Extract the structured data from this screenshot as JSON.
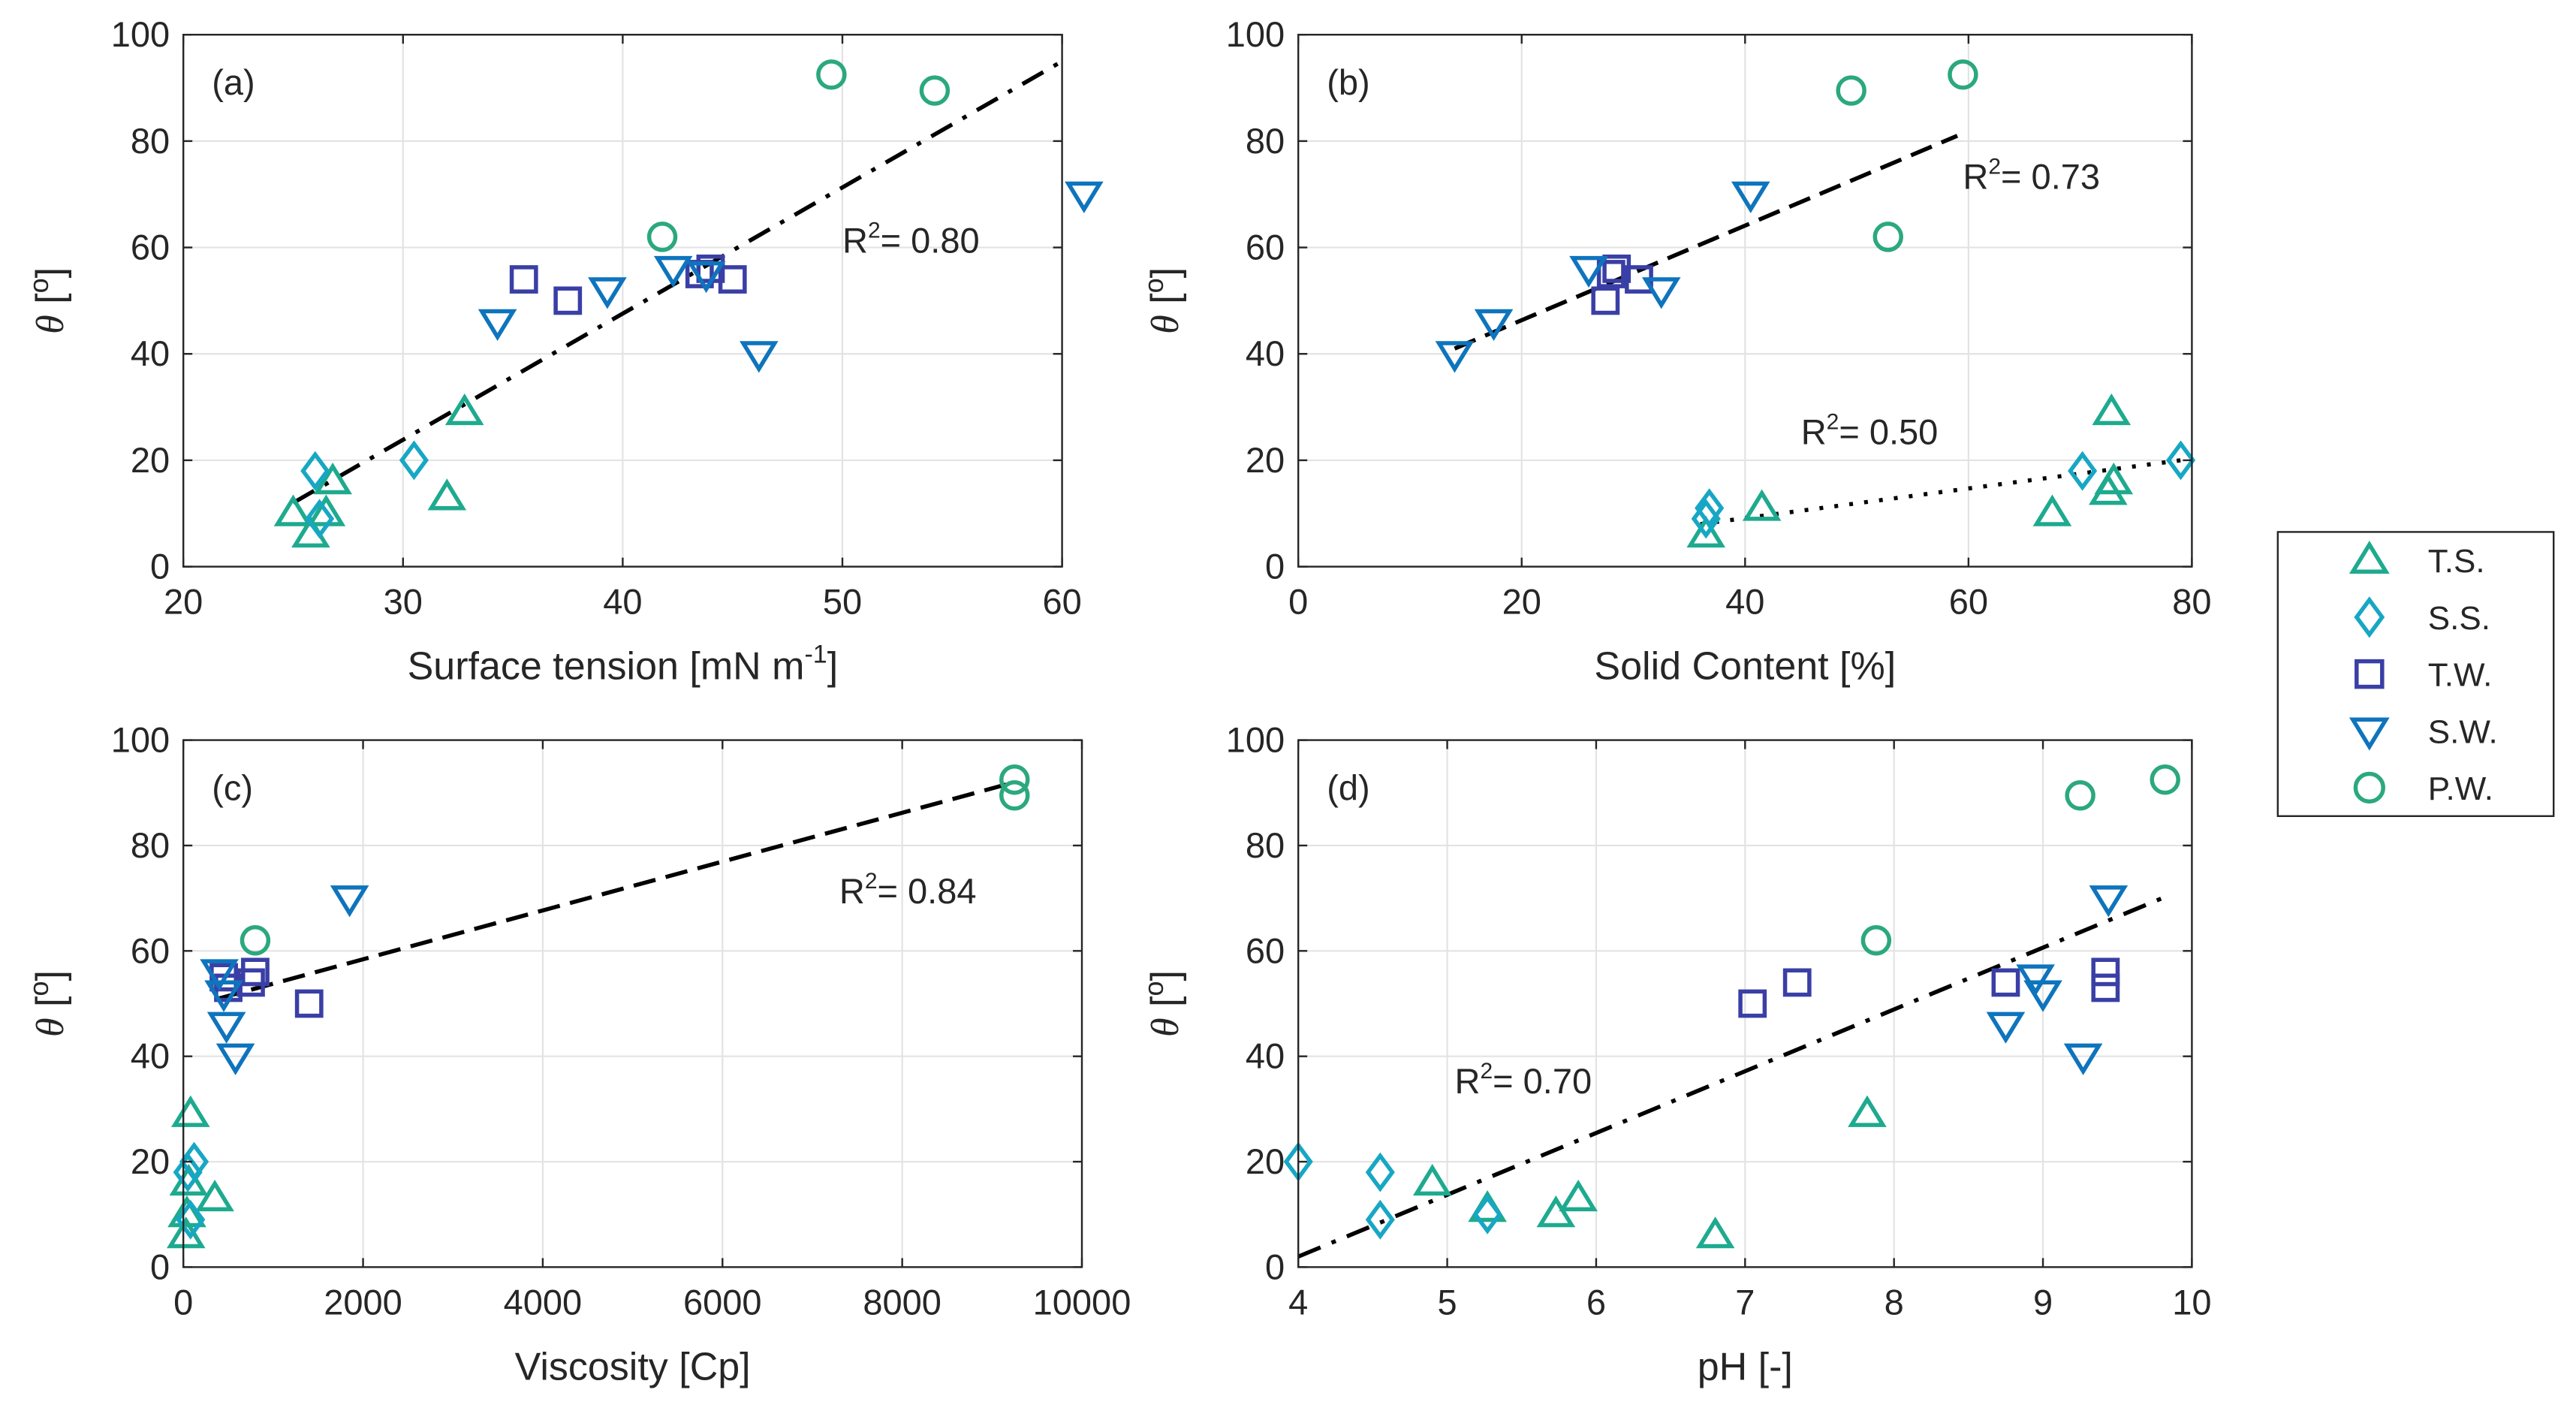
{
  "legend": {
    "items": [
      {
        "key": "TS",
        "label": "T.S."
      },
      {
        "key": "SS",
        "label": "S.S."
      },
      {
        "key": "TW",
        "label": "T.W."
      },
      {
        "key": "SW",
        "label": "S.W."
      },
      {
        "key": "PW",
        "label": "P.W."
      }
    ]
  },
  "styles": {
    "TS": {
      "color": "#1eaa8e",
      "marker": "triangle-up"
    },
    "SS": {
      "color": "#17a7c4",
      "marker": "diamond"
    },
    "TW": {
      "color": "#3a3fa6",
      "marker": "square"
    },
    "SW": {
      "color": "#0e74bd",
      "marker": "triangle-down"
    },
    "PW": {
      "color": "#2ba87e",
      "marker": "circle"
    }
  },
  "chart_data": [
    {
      "id": "a",
      "type": "scatter",
      "panel_label": "(a)",
      "xlabel": "Surface tension [mN m",
      "xlabel_sup": "-1",
      "xlabel_tail": "]",
      "ylabel": "θ",
      "ylabel_tail": " [",
      "ylabel_sup": "o",
      "ylabel_end": "]",
      "xlim": [
        20,
        60
      ],
      "ylim": [
        0,
        100
      ],
      "xticks": [
        20,
        30,
        40,
        50,
        60
      ],
      "xtick_labels": [
        "20",
        "30",
        "40",
        "50",
        "60"
      ],
      "yticks": [
        0,
        20,
        40,
        60,
        80,
        100
      ],
      "ytick_labels": [
        "0",
        "20",
        "40",
        "60",
        "80",
        "100"
      ],
      "series": [
        {
          "name": "TS",
          "points": [
            [
              25,
              10
            ],
            [
              25.8,
              6
            ],
            [
              26.5,
              10
            ],
            [
              26.8,
              16
            ],
            [
              32,
              13
            ],
            [
              32.8,
              29
            ]
          ]
        },
        {
          "name": "SS",
          "points": [
            [
              26,
              18
            ],
            [
              26.2,
              9
            ],
            [
              30.5,
              20
            ]
          ]
        },
        {
          "name": "TW",
          "points": [
            [
              35.5,
              54
            ],
            [
              37.5,
              50
            ],
            [
              43.5,
              55
            ],
            [
              44,
              56
            ],
            [
              45,
              54
            ]
          ]
        },
        {
          "name": "SW",
          "points": [
            [
              34.3,
              46
            ],
            [
              39.3,
              52
            ],
            [
              42.3,
              56
            ],
            [
              43.8,
              55
            ],
            [
              46.2,
              40
            ],
            [
              61,
              70
            ]
          ]
        },
        {
          "name": "PW",
          "points": [
            [
              41.8,
              62
            ],
            [
              49.5,
              92.5
            ],
            [
              54.2,
              89.5
            ]
          ]
        }
      ],
      "fit": {
        "dash": "dashdot",
        "from": [
          25,
          12
        ],
        "to": [
          60,
          95
        ]
      },
      "annotation": {
        "pre": "R",
        "sup": "2",
        "post": "= 0.80",
        "x": 50,
        "y": 59
      }
    },
    {
      "id": "b",
      "type": "scatter",
      "panel_label": "(b)",
      "xlabel": "Solid Content [%]",
      "xlabel_sup": "",
      "xlabel_tail": "",
      "ylabel": "θ",
      "ylabel_tail": " [",
      "ylabel_sup": "o",
      "ylabel_end": "]",
      "xlim": [
        0,
        80
      ],
      "ylim": [
        0,
        100
      ],
      "xticks": [
        0,
        20,
        40,
        60,
        80
      ],
      "xtick_labels": [
        "0",
        "20",
        "40",
        "60",
        "80"
      ],
      "yticks": [
        0,
        20,
        40,
        60,
        80,
        100
      ],
      "ytick_labels": [
        "0",
        "20",
        "40",
        "60",
        "80",
        "100"
      ],
      "series": [
        {
          "name": "TS",
          "points": [
            [
              36.5,
              6
            ],
            [
              41.5,
              11
            ],
            [
              67.5,
              10
            ],
            [
              72.5,
              14
            ],
            [
              73,
              16
            ],
            [
              72.8,
              29
            ]
          ]
        },
        {
          "name": "SS",
          "points": [
            [
              36.5,
              9
            ],
            [
              36.8,
              11
            ],
            [
              70.2,
              18
            ],
            [
              79,
              20
            ]
          ]
        },
        {
          "name": "TW",
          "points": [
            [
              27.5,
              50
            ],
            [
              28,
              55
            ],
            [
              28.5,
              56
            ],
            [
              30.5,
              54
            ]
          ]
        },
        {
          "name": "SW",
          "points": [
            [
              14,
              40
            ],
            [
              17.5,
              46
            ],
            [
              26,
              56
            ],
            [
              32.5,
              52
            ],
            [
              40.5,
              70
            ]
          ]
        },
        {
          "name": "PW",
          "points": [
            [
              49.5,
              89.5
            ],
            [
              52.8,
              62
            ],
            [
              59.5,
              92.5
            ]
          ]
        }
      ],
      "fit": [
        {
          "dash": "dashed",
          "from": [
            14,
            41
          ],
          "to": [
            59,
            81
          ]
        },
        {
          "dash": "dotted",
          "from": [
            36,
            8
          ],
          "to": [
            79,
            20
          ]
        }
      ],
      "annotation": [
        {
          "pre": "R",
          "sup": "2",
          "post": "= 0.73",
          "x": 59.5,
          "y": 71
        },
        {
          "pre": "R",
          "sup": "2",
          "post": "= 0.50",
          "x": 45,
          "y": 23
        }
      ]
    },
    {
      "id": "c",
      "type": "scatter",
      "panel_label": "(c)",
      "xlabel": "Viscosity [Cp]",
      "xlabel_sup": "",
      "xlabel_tail": "",
      "ylabel": "θ",
      "ylabel_tail": " [",
      "ylabel_sup": "o",
      "ylabel_end": "]",
      "xlim": [
        0,
        10000
      ],
      "ylim": [
        0,
        100
      ],
      "xticks": [
        0,
        2000,
        4000,
        6000,
        8000,
        10000
      ],
      "xtick_labels": [
        "0",
        "2000",
        "4000",
        "6000",
        "8000",
        "10000"
      ],
      "yticks": [
        0,
        20,
        40,
        60,
        80,
        100
      ],
      "ytick_labels": [
        "0",
        "20",
        "40",
        "60",
        "80",
        "100"
      ],
      "series": [
        {
          "name": "TS",
          "points": [
            [
              30,
              6
            ],
            [
              40,
              10
            ],
            [
              60,
              16
            ],
            [
              80,
              29
            ],
            [
              350,
              13
            ]
          ]
        },
        {
          "name": "SS",
          "points": [
            [
              50,
              18
            ],
            [
              80,
              9
            ],
            [
              120,
              20
            ]
          ]
        },
        {
          "name": "TW",
          "points": [
            [
              450,
              55
            ],
            [
              500,
              53
            ],
            [
              750,
              54
            ],
            [
              800,
              56
            ],
            [
              1400,
              50
            ]
          ]
        },
        {
          "name": "SW",
          "points": [
            [
              400,
              56
            ],
            [
              450,
              52
            ],
            [
              480,
              46
            ],
            [
              580,
              40
            ],
            [
              1850,
              70
            ]
          ]
        },
        {
          "name": "PW",
          "points": [
            [
              800,
              62
            ],
            [
              9250,
              89.5
            ],
            [
              9250,
              92.5
            ]
          ]
        }
      ],
      "fit": {
        "dash": "dashed",
        "from": [
          400,
          51
        ],
        "to": [
          9250,
          92
        ]
      },
      "annotation": {
        "pre": "R",
        "sup": "2",
        "post": "= 0.84",
        "x": 7300,
        "y": 69
      }
    },
    {
      "id": "d",
      "type": "scatter",
      "panel_label": "(d)",
      "xlabel": "pH [-]",
      "xlabel_sup": "",
      "xlabel_tail": "",
      "ylabel": "θ",
      "ylabel_tail": " [",
      "ylabel_sup": "o",
      "ylabel_end": "]",
      "xlim": [
        4,
        10
      ],
      "ylim": [
        0,
        100
      ],
      "xticks": [
        4,
        5,
        6,
        7,
        8,
        9,
        10
      ],
      "xtick_labels": [
        "4",
        "5",
        "6",
        "7",
        "8",
        "9",
        "10"
      ],
      "yticks": [
        0,
        20,
        40,
        60,
        80,
        100
      ],
      "ytick_labels": [
        "0",
        "20",
        "40",
        "60",
        "80",
        "100"
      ],
      "series": [
        {
          "name": "TS",
          "points": [
            [
              4.9,
              16
            ],
            [
              5.27,
              11
            ],
            [
              5.73,
              10
            ],
            [
              5.88,
              13
            ],
            [
              6.8,
              6
            ],
            [
              7.82,
              29
            ]
          ]
        },
        {
          "name": "SS",
          "points": [
            [
              4.0,
              20
            ],
            [
              4.55,
              18
            ],
            [
              4.55,
              9
            ],
            [
              5.27,
              10
            ]
          ]
        },
        {
          "name": "TW",
          "points": [
            [
              7.05,
              50
            ],
            [
              7.35,
              54
            ],
            [
              8.75,
              54
            ],
            [
              9.42,
              53
            ],
            [
              9.42,
              56
            ]
          ]
        },
        {
          "name": "SW",
          "points": [
            [
              8.75,
              46
            ],
            [
              8.95,
              55
            ],
            [
              9.0,
              52
            ],
            [
              9.27,
              40
            ],
            [
              9.44,
              70
            ]
          ]
        },
        {
          "name": "PW",
          "points": [
            [
              7.88,
              62
            ],
            [
              9.25,
              89.5
            ],
            [
              9.82,
              92.5
            ]
          ]
        }
      ],
      "fit": {
        "dash": "dashdot",
        "from": [
          4,
          2
        ],
        "to": [
          9.8,
          70
        ]
      },
      "annotation": {
        "pre": "R",
        "sup": "2",
        "post": "= 0.70",
        "x": 5.05,
        "y": 33
      }
    }
  ]
}
